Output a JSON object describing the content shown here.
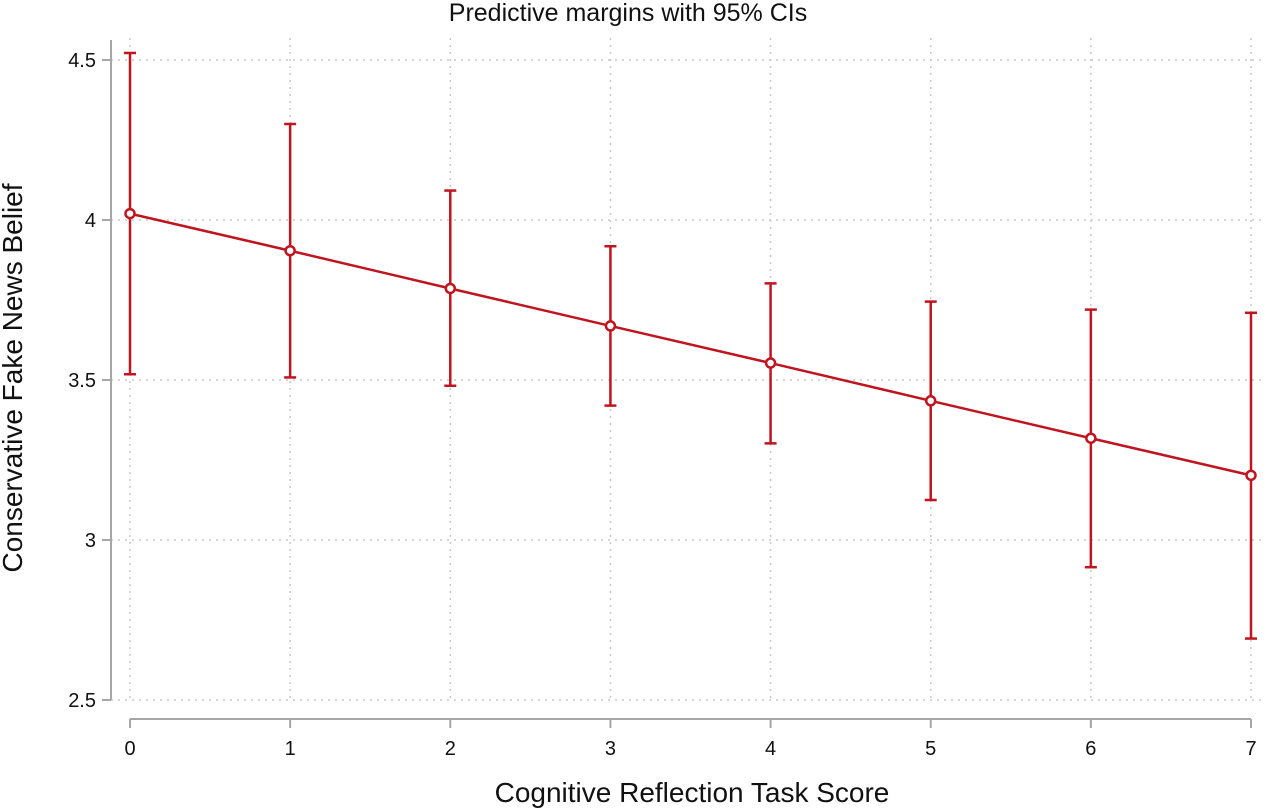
{
  "chart_data": {
    "type": "line",
    "title": "Predictive margins with 95% CIs",
    "xlabel": "Cognitive Reflection Task Score",
    "ylabel": "Conservative Fake News Belief",
    "xlim": [
      0,
      7
    ],
    "ylim": [
      2.5,
      4.5
    ],
    "x_ticks": [
      "0",
      "1",
      "2",
      "3",
      "4",
      "5",
      "6",
      "7"
    ],
    "y_ticks": [
      "2.5",
      "3",
      "3.5",
      "4",
      "4.5"
    ],
    "grid": true,
    "error_bars": "95% confidence intervals",
    "series": [
      {
        "color": "#c0141e",
        "x": [
          0,
          1,
          2,
          3,
          4,
          5,
          6,
          7
        ],
        "values": [
          4.02,
          3.904,
          3.786,
          3.669,
          3.553,
          3.435,
          3.318,
          3.202
        ],
        "ci_lower": [
          3.518,
          3.508,
          3.482,
          3.42,
          3.302,
          3.125,
          2.915,
          2.692
        ],
        "ci_upper": [
          4.522,
          4.3,
          4.092,
          3.918,
          3.802,
          3.745,
          3.72,
          3.71
        ]
      }
    ]
  }
}
